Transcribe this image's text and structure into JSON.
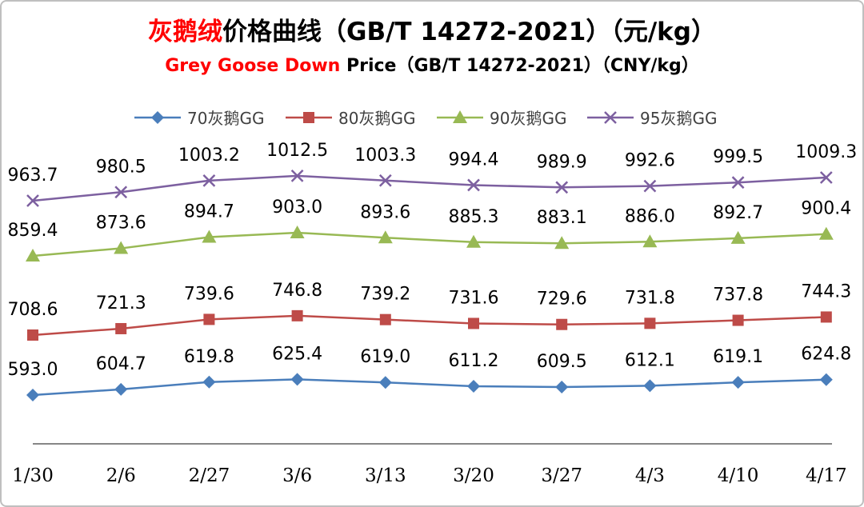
{
  "title": {
    "line1_highlight": "灰鹅绒",
    "line1_rest": "价格曲线（GB/T 14272-2021）（元/kg）",
    "line2_highlight": "Grey Goose Down",
    "line2_rest": " Price（GB/T 14272-2021）（CNY/kg）"
  },
  "chart_data": {
    "type": "line",
    "categories": [
      "1/30",
      "2/6",
      "2/27",
      "3/6",
      "3/13",
      "3/20",
      "3/27",
      "4/3",
      "4/10",
      "4/17"
    ],
    "series": [
      {
        "name": "70灰鹅GG",
        "color": "#4a7ebb",
        "marker": "diamond",
        "values": [
          593.0,
          604.7,
          619.8,
          625.4,
          619.0,
          611.2,
          609.5,
          612.1,
          619.1,
          624.8
        ]
      },
      {
        "name": "80灰鹅GG",
        "color": "#be4b48",
        "marker": "square",
        "values": [
          708.6,
          721.3,
          739.6,
          746.8,
          739.2,
          731.6,
          729.6,
          731.8,
          737.8,
          744.3
        ]
      },
      {
        "name": "90灰鹅GG",
        "color": "#98b954",
        "marker": "triangle",
        "values": [
          859.4,
          873.6,
          894.7,
          903.0,
          893.6,
          885.3,
          883.1,
          886.0,
          892.7,
          900.4
        ]
      },
      {
        "name": "95灰鹅GG",
        "color": "#7d60a0",
        "marker": "x",
        "values": [
          963.7,
          980.5,
          1003.2,
          1012.5,
          1003.3,
          994.4,
          989.9,
          992.6,
          999.5,
          1009.3
        ]
      }
    ],
    "legend_position": "top",
    "grid": false
  }
}
